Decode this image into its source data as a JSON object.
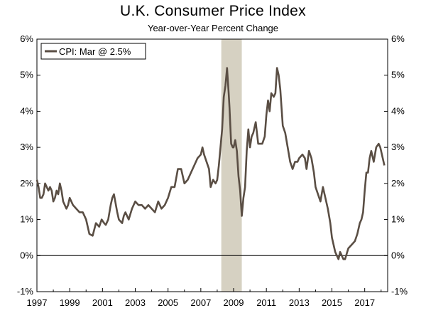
{
  "chart_data": {
    "type": "line",
    "title": "U.K. Consumer Price Index",
    "subtitle": "Year-over-Year Percent Change",
    "xlabel": "",
    "ylabel": "",
    "xlim": [
      1997.0,
      2018.4
    ],
    "ylim": [
      -1,
      6
    ],
    "y_ticks": [
      -1,
      0,
      1,
      2,
      3,
      4,
      5,
      6
    ],
    "y_tick_labels": [
      "-1%",
      "0%",
      "1%",
      "2%",
      "3%",
      "4%",
      "5%",
      "6%"
    ],
    "x_ticks": [
      1997,
      1999,
      2001,
      2003,
      2005,
      2007,
      2009,
      2011,
      2013,
      2015,
      2017
    ],
    "x_tick_labels": [
      "1997",
      "1999",
      "2001",
      "2003",
      "2005",
      "2007",
      "2009",
      "2011",
      "2013",
      "2015",
      "2017"
    ],
    "recession_shading": [
      {
        "start": 2008.25,
        "end": 2009.5,
        "color": "#d6d1c2"
      }
    ],
    "zero_line": true,
    "legend": {
      "placement": "top-left",
      "entries": [
        "CPI: Mar @ 2.5%"
      ]
    },
    "series": [
      {
        "name": "CPI: Mar @ 2.5%",
        "color": "#5a4e44",
        "x": [
          1997.0,
          1997.1,
          1997.2,
          1997.3,
          1997.4,
          1997.5,
          1997.6,
          1997.7,
          1997.8,
          1997.9,
          1998.0,
          1998.1,
          1998.2,
          1998.3,
          1998.4,
          1998.5,
          1998.6,
          1998.7,
          1998.8,
          1998.9,
          1999.0,
          1999.2,
          1999.4,
          1999.6,
          1999.8,
          2000.0,
          2000.2,
          2000.4,
          2000.6,
          2000.8,
          2000.95,
          2001.1,
          2001.2,
          2001.35,
          2001.5,
          2001.6,
          2001.7,
          2001.9,
          2002.0,
          2002.2,
          2002.3,
          2002.4,
          2002.6,
          2002.8,
          2003.0,
          2003.2,
          2003.4,
          2003.6,
          2003.8,
          2004.0,
          2004.2,
          2004.4,
          2004.6,
          2004.8,
          2005.0,
          2005.2,
          2005.4,
          2005.6,
          2005.8,
          2006.0,
          2006.2,
          2006.4,
          2006.6,
          2006.8,
          2007.0,
          2007.1,
          2007.2,
          2007.35,
          2007.5,
          2007.6,
          2007.75,
          2007.9,
          2008.0,
          2008.1,
          2008.2,
          2008.3,
          2008.4,
          2008.5,
          2008.6,
          2008.7,
          2008.75,
          2008.85,
          2008.95,
          2009.0,
          2009.1,
          2009.2,
          2009.3,
          2009.4,
          2009.5,
          2009.6,
          2009.7,
          2009.8,
          2009.9,
          2010.0,
          2010.1,
          2010.2,
          2010.35,
          2010.5,
          2010.6,
          2010.75,
          2010.9,
          2011.0,
          2011.1,
          2011.2,
          2011.3,
          2011.45,
          2011.55,
          2011.65,
          2011.75,
          2011.85,
          2012.0,
          2012.15,
          2012.3,
          2012.45,
          2012.6,
          2012.75,
          2012.9,
          2013.0,
          2013.2,
          2013.35,
          2013.45,
          2013.6,
          2013.75,
          2013.9,
          2014.0,
          2014.15,
          2014.3,
          2014.45,
          2014.6,
          2014.75,
          2014.9,
          2015.0,
          2015.1,
          2015.2,
          2015.3,
          2015.4,
          2015.5,
          2015.6,
          2015.7,
          2015.8,
          2016.0,
          2016.2,
          2016.4,
          2016.55,
          2016.7,
          2016.8,
          2016.9,
          2017.0,
          2017.1,
          2017.2,
          2017.3,
          2017.4,
          2017.55,
          2017.7,
          2017.85,
          2017.95,
          2018.1,
          2018.2
        ],
        "y": [
          2.1,
          1.9,
          1.6,
          1.6,
          1.7,
          2.0,
          1.9,
          1.8,
          1.9,
          1.8,
          1.5,
          1.6,
          1.8,
          1.7,
          2.0,
          1.8,
          1.5,
          1.4,
          1.3,
          1.4,
          1.6,
          1.4,
          1.3,
          1.2,
          1.2,
          1.0,
          0.6,
          0.55,
          0.9,
          0.8,
          1.0,
          0.9,
          0.85,
          1.0,
          1.4,
          1.6,
          1.7,
          1.2,
          1.0,
          0.9,
          1.1,
          1.2,
          1.0,
          1.3,
          1.5,
          1.4,
          1.4,
          1.3,
          1.4,
          1.3,
          1.2,
          1.5,
          1.3,
          1.4,
          1.6,
          1.9,
          1.9,
          2.4,
          2.4,
          2.0,
          2.1,
          2.3,
          2.5,
          2.7,
          2.8,
          3.0,
          2.8,
          2.6,
          2.4,
          1.9,
          2.1,
          2.0,
          2.1,
          2.5,
          3.0,
          3.5,
          4.4,
          4.7,
          5.2,
          4.5,
          4.1,
          3.1,
          3.0,
          3.0,
          3.2,
          2.9,
          2.2,
          1.8,
          1.1,
          1.6,
          1.9,
          2.9,
          3.5,
          3.0,
          3.3,
          3.4,
          3.7,
          3.1,
          3.1,
          3.1,
          3.3,
          3.9,
          4.3,
          4.0,
          4.5,
          4.4,
          4.5,
          5.2,
          5.0,
          4.6,
          3.6,
          3.4,
          3.0,
          2.6,
          2.4,
          2.6,
          2.6,
          2.7,
          2.8,
          2.7,
          2.4,
          2.9,
          2.7,
          2.3,
          1.9,
          1.7,
          1.5,
          1.9,
          1.6,
          1.3,
          0.9,
          0.5,
          0.3,
          0.1,
          0.0,
          -0.1,
          0.1,
          0.0,
          -0.1,
          -0.1,
          0.2,
          0.3,
          0.4,
          0.6,
          0.9,
          1.0,
          1.2,
          1.8,
          2.3,
          2.3,
          2.7,
          2.9,
          2.6,
          3.0,
          3.1,
          3.0,
          2.7,
          2.5
        ]
      }
    ]
  }
}
